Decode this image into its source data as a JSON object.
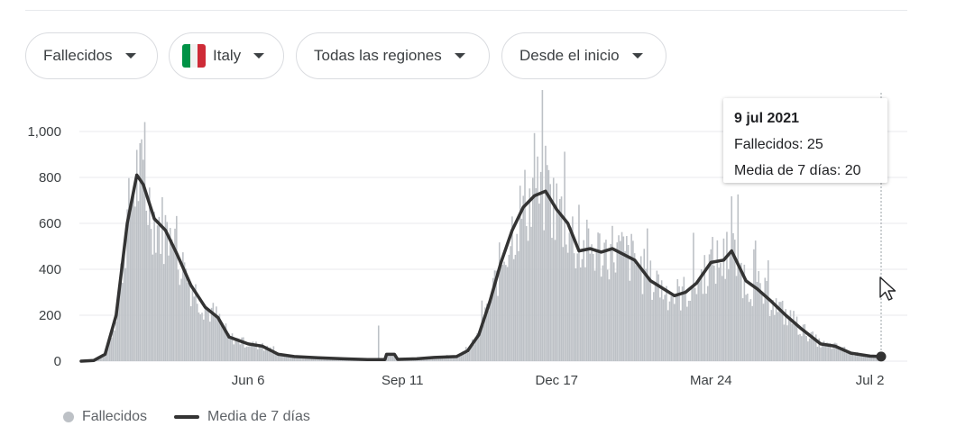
{
  "filters": {
    "metric": "Fallecidos",
    "country": "Italy",
    "region": "Todas las regiones",
    "range": "Desde el inicio"
  },
  "colors": {
    "bars": "#bdc1c6",
    "line": "#333333",
    "grid": "#e8eaed",
    "flag_green": "#009246",
    "flag_white": "#f1f2f1",
    "flag_red": "#ce2b37"
  },
  "tooltip": {
    "date": "9 jul 2021",
    "deaths": "Fallecidos: 25",
    "average": "Media de 7 días: 20"
  },
  "legend": {
    "bars": "Fallecidos",
    "line": "Media de 7 días"
  },
  "chart_data": {
    "type": "bar",
    "title": "",
    "xlabel": "",
    "ylabel": "",
    "x_range": [
      "2020-02-22",
      "2021-07-09"
    ],
    "ylim": [
      0,
      1000
    ],
    "y_ticks": [
      0,
      200,
      400,
      600,
      800,
      1000
    ],
    "y_tick_labels": [
      "0",
      "200",
      "400",
      "600",
      "800",
      "1,000"
    ],
    "x_tick_labels": [
      "Jun 6",
      "Sep 11",
      "Dec 17",
      "Mar 24",
      "Jul 2"
    ],
    "x_tick_dates": [
      "2020-06-06",
      "2020-09-11",
      "2020-12-17",
      "2021-03-24",
      "2021-07-02"
    ],
    "grid": true,
    "legend_position": "bottom-left",
    "series": [
      {
        "name": "Fallecidos",
        "type": "bar",
        "values": []
      },
      {
        "name": "Media de 7 días",
        "type": "line",
        "points": [
          [
            "2020-02-22",
            0
          ],
          [
            "2020-03-01",
            3
          ],
          [
            "2020-03-08",
            30
          ],
          [
            "2020-03-15",
            200
          ],
          [
            "2020-03-22",
            600
          ],
          [
            "2020-03-28",
            810
          ],
          [
            "2020-04-01",
            770
          ],
          [
            "2020-04-08",
            620
          ],
          [
            "2020-04-15",
            570
          ],
          [
            "2020-04-22",
            470
          ],
          [
            "2020-05-01",
            330
          ],
          [
            "2020-05-10",
            235
          ],
          [
            "2020-05-18",
            190
          ],
          [
            "2020-05-25",
            105
          ],
          [
            "2020-06-06",
            75
          ],
          [
            "2020-06-15",
            65
          ],
          [
            "2020-06-25",
            30
          ],
          [
            "2020-07-05",
            20
          ],
          [
            "2020-07-20",
            15
          ],
          [
            "2020-08-05",
            10
          ],
          [
            "2020-08-20",
            7
          ],
          [
            "2020-08-31",
            7
          ],
          [
            "2020-09-01",
            30
          ],
          [
            "2020-09-06",
            30
          ],
          [
            "2020-09-08",
            8
          ],
          [
            "2020-09-20",
            10
          ],
          [
            "2020-10-01",
            16
          ],
          [
            "2020-10-15",
            20
          ],
          [
            "2020-10-22",
            45
          ],
          [
            "2020-10-29",
            115
          ],
          [
            "2020-11-05",
            260
          ],
          [
            "2020-11-12",
            430
          ],
          [
            "2020-11-19",
            570
          ],
          [
            "2020-11-26",
            670
          ],
          [
            "2020-12-03",
            720
          ],
          [
            "2020-12-10",
            740
          ],
          [
            "2020-12-17",
            660
          ],
          [
            "2020-12-24",
            600
          ],
          [
            "2020-12-31",
            480
          ],
          [
            "2021-01-07",
            490
          ],
          [
            "2021-01-14",
            475
          ],
          [
            "2021-01-21",
            490
          ],
          [
            "2021-01-28",
            465
          ],
          [
            "2021-02-04",
            440
          ],
          [
            "2021-02-14",
            350
          ],
          [
            "2021-02-21",
            320
          ],
          [
            "2021-03-01",
            285
          ],
          [
            "2021-03-08",
            300
          ],
          [
            "2021-03-15",
            340
          ],
          [
            "2021-03-24",
            430
          ],
          [
            "2021-04-01",
            440
          ],
          [
            "2021-04-06",
            480
          ],
          [
            "2021-04-15",
            350
          ],
          [
            "2021-04-22",
            315
          ],
          [
            "2021-05-01",
            260
          ],
          [
            "2021-05-10",
            200
          ],
          [
            "2021-05-20",
            140
          ],
          [
            "2021-06-01",
            75
          ],
          [
            "2021-06-10",
            65
          ],
          [
            "2021-06-20",
            35
          ],
          [
            "2021-07-02",
            22
          ],
          [
            "2021-07-09",
            20
          ]
        ]
      }
    ],
    "notable_spikes": [
      {
        "date": "2020-08-27",
        "value": 155
      },
      {
        "date": "2020-12-03",
        "value": 993
      },
      {
        "date": "2021-04-06",
        "value": 718
      },
      {
        "date": "2021-07-09",
        "value": 25
      }
    ]
  }
}
